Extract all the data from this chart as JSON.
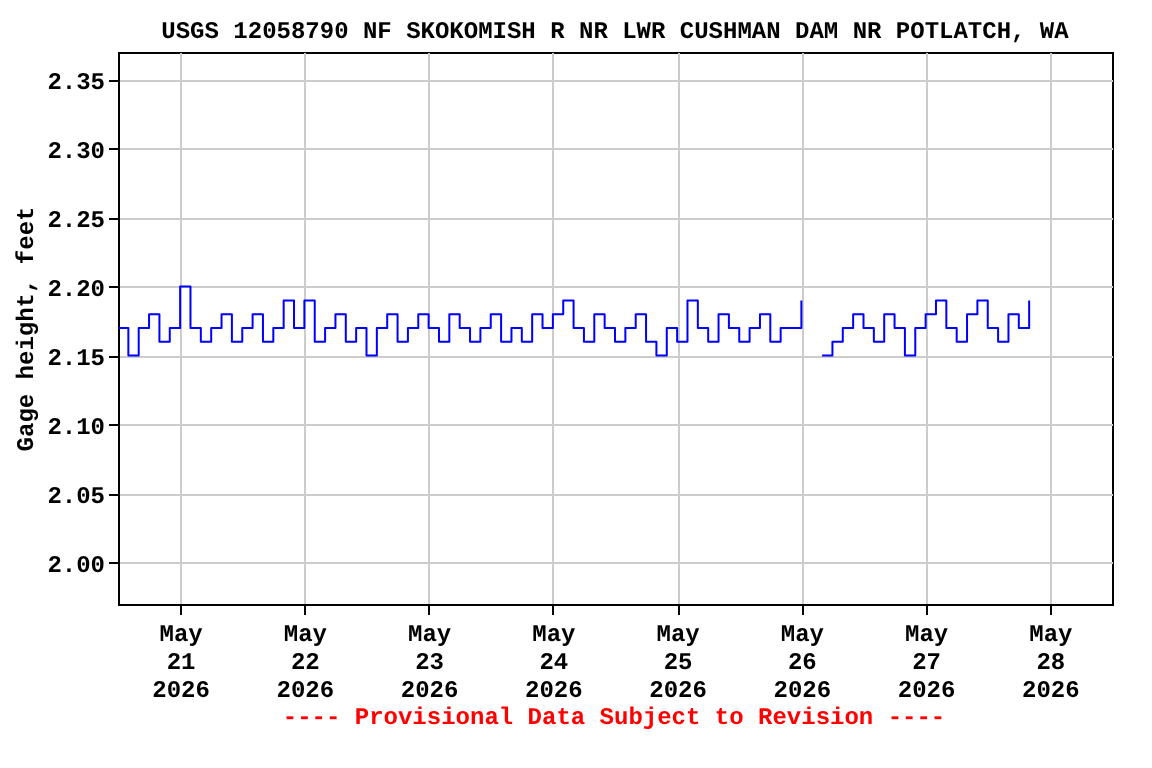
{
  "chart_data": {
    "type": "step",
    "title": "USGS 12058790 NF SKOKOMISH R NR LWR CUSHMAN DAM NR POTLATCH, WA",
    "ylabel": "Gage height, feet",
    "annotations": [
      "---- Provisional Data Subject to Revision ----"
    ],
    "x": [
      "2026-05-20T12:00",
      "2026-05-20T14:00",
      "2026-05-20T16:00",
      "2026-05-20T18:00",
      "2026-05-20T20:00",
      "2026-05-20T22:00",
      "2026-05-21T00:00",
      "2026-05-21T02:00",
      "2026-05-21T04:00",
      "2026-05-21T06:00",
      "2026-05-21T08:00",
      "2026-05-21T10:00",
      "2026-05-21T12:00",
      "2026-05-21T14:00",
      "2026-05-21T16:00",
      "2026-05-21T18:00",
      "2026-05-21T20:00",
      "2026-05-21T22:00",
      "2026-05-22T00:00",
      "2026-05-22T02:00",
      "2026-05-22T04:00",
      "2026-05-22T06:00",
      "2026-05-22T08:00",
      "2026-05-22T10:00",
      "2026-05-22T12:00",
      "2026-05-22T14:00",
      "2026-05-22T16:00",
      "2026-05-22T18:00",
      "2026-05-22T20:00",
      "2026-05-22T22:00",
      "2026-05-23T00:00",
      "2026-05-23T02:00",
      "2026-05-23T04:00",
      "2026-05-23T06:00",
      "2026-05-23T08:00",
      "2026-05-23T10:00",
      "2026-05-23T12:00",
      "2026-05-23T14:00",
      "2026-05-23T16:00",
      "2026-05-23T18:00",
      "2026-05-23T20:00",
      "2026-05-23T22:00",
      "2026-05-24T00:00",
      "2026-05-24T02:00",
      "2026-05-24T04:00",
      "2026-05-24T06:00",
      "2026-05-24T08:00",
      "2026-05-24T10:00",
      "2026-05-24T12:00",
      "2026-05-24T14:00",
      "2026-05-24T16:00",
      "2026-05-24T18:00",
      "2026-05-24T20:00",
      "2026-05-24T22:00",
      "2026-05-25T00:00",
      "2026-05-25T02:00",
      "2026-05-25T04:00",
      "2026-05-25T06:00",
      "2026-05-25T08:00",
      "2026-05-25T10:00",
      "2026-05-25T12:00",
      "2026-05-25T14:00",
      "2026-05-25T16:00",
      "2026-05-25T18:00",
      "2026-05-25T20:00",
      "2026-05-25T22:00",
      "2026-05-26T00:00",
      "2026-05-26T02:00",
      "2026-05-26T04:00",
      "2026-05-26T06:00",
      "2026-05-26T08:00",
      "2026-05-26T10:00",
      "2026-05-26T12:00",
      "2026-05-26T14:00",
      "2026-05-26T16:00",
      "2026-05-26T18:00",
      "2026-05-26T20:00",
      "2026-05-26T22:00",
      "2026-05-27T00:00",
      "2026-05-27T02:00",
      "2026-05-27T04:00",
      "2026-05-27T06:00",
      "2026-05-27T08:00",
      "2026-05-27T10:00",
      "2026-05-27T12:00",
      "2026-05-27T14:00",
      "2026-05-27T16:00",
      "2026-05-27T18:00",
      "2026-05-27T20:00"
    ],
    "series": [
      {
        "color": "#0000ff",
        "values": [
          2.17,
          2.15,
          2.17,
          2.18,
          2.16,
          2.17,
          2.2,
          2.17,
          2.16,
          2.17,
          2.18,
          2.16,
          2.17,
          2.18,
          2.16,
          2.17,
          2.19,
          2.17,
          2.19,
          2.16,
          2.17,
          2.18,
          2.16,
          2.17,
          2.15,
          2.17,
          2.18,
          2.16,
          2.17,
          2.18,
          2.17,
          2.16,
          2.18,
          2.17,
          2.16,
          2.17,
          2.18,
          2.16,
          2.17,
          2.16,
          2.18,
          2.17,
          2.18,
          2.19,
          2.17,
          2.16,
          2.18,
          2.17,
          2.16,
          2.17,
          2.18,
          2.16,
          2.15,
          2.17,
          2.16,
          2.19,
          2.17,
          2.16,
          2.18,
          2.17,
          2.16,
          2.17,
          2.18,
          2.16,
          2.17,
          2.17,
          2.19,
          null,
          2.15,
          2.16,
          2.17,
          2.18,
          2.17,
          2.16,
          2.18,
          2.17,
          2.15,
          2.17,
          2.18,
          2.19,
          2.17,
          2.16,
          2.18,
          2.19,
          2.17,
          2.16,
          2.18,
          2.17,
          2.19
        ]
      }
    ],
    "xlim": [
      "2026-05-20T12:00",
      "2026-05-28T12:00"
    ],
    "xticks": [
      {
        "value": "2026-05-21",
        "label": "May 21 2026"
      },
      {
        "value": "2026-05-22",
        "label": "May 22 2026"
      },
      {
        "value": "2026-05-23",
        "label": "May 23 2026"
      },
      {
        "value": "2026-05-24",
        "label": "May 24 2026"
      },
      {
        "value": "2026-05-25",
        "label": "May 25 2026"
      },
      {
        "value": "2026-05-26",
        "label": "May 26 2026"
      },
      {
        "value": "2026-05-27",
        "label": "May 27 2026"
      },
      {
        "value": "2026-05-28",
        "label": "May 28 2026"
      }
    ],
    "ylim": [
      1.97,
      2.37
    ],
    "yticks": [
      {
        "value": 2.0,
        "label": "2.00"
      },
      2.05,
      {
        "value": 2.1,
        "label": "2.10"
      },
      2.15,
      {
        "value": 2.2,
        "label": "2.20"
      },
      2.25,
      {
        "value": 2.3,
        "label": "2.30"
      },
      2.35
    ],
    "grid": true
  }
}
